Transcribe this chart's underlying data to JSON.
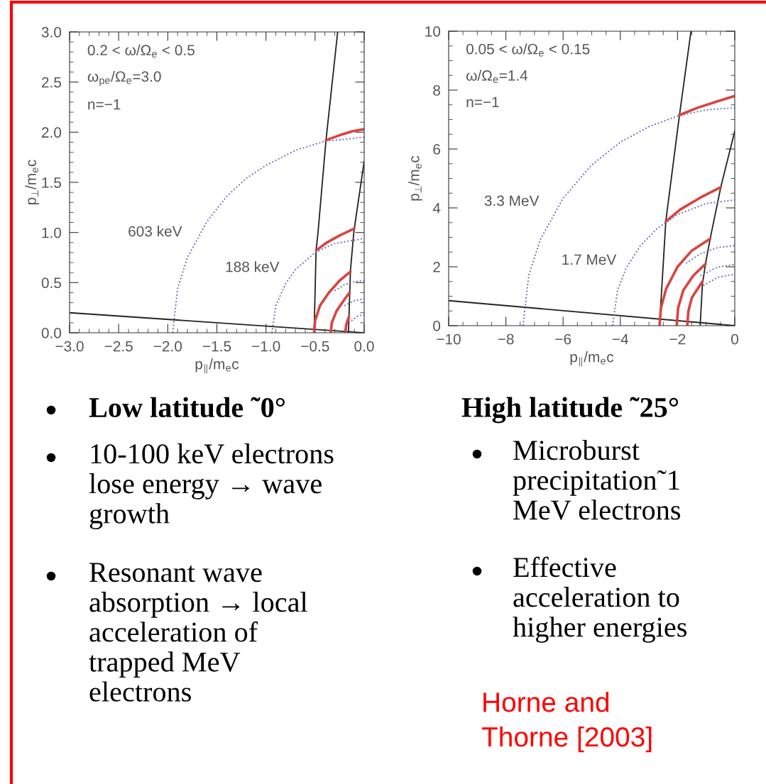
{
  "chart_data": [
    {
      "type": "line",
      "xlabel": "p$_{∥}$/m$_{e}$c",
      "ylabel": "p$_{⊥}$/m$_{e}$c",
      "line_style": "solid",
      "xlim": [
        -3,
        0
      ],
      "ylim": [
        0,
        3
      ],
      "xticks": [
        {
          "value": -3,
          "label": "−3.0"
        },
        {
          "value": -2.5,
          "label": "−2.5"
        },
        {
          "value": -2,
          "label": "−2.0"
        },
        {
          "value": -1.5,
          "label": "−1.5"
        },
        {
          "value": -1,
          "label": "−1.0"
        },
        {
          "value": -0.5,
          "label": "−0.5"
        },
        {
          "value": 0,
          "label": "0.0"
        }
      ],
      "yticks": [
        {
          "value": 0,
          "label": "0.0"
        },
        0.5,
        {
          "value": 1,
          "label": "1.0"
        },
        1.5,
        {
          "value": 2,
          "label": "2.0"
        },
        2.5,
        {
          "value": 3,
          "label": "3.0"
        }
      ],
      "annotations": [
        "0.2 < ω/Ω$_{e}$ < 0.5",
        "ω$_{pe}$/Ω$_{e}$=3.0",
        "n=−1",
        "603 keV",
        "188 keV"
      ],
      "series": [
        {
          "color": "#222222",
          "x": [
            -0.51,
            -0.49,
            -0.47,
            -0.39,
            -0.27
          ],
          "values": [
            0,
            0.82,
            1.0,
            1.91,
            3.0
          ]
        },
        {
          "color": "#222222",
          "x": [
            -0.16,
            -0.14,
            -0.105,
            0
          ],
          "values": [
            0,
            0.62,
            1.01,
            1.71
          ]
        },
        {
          "color": "#222222",
          "x": [
            -3,
            0
          ],
          "values": [
            0.2,
            0
          ]
        },
        {
          "color": "#5a5fb0",
          "line_style": "dotted",
          "x": [
            -1.95,
            -1.9,
            -1.8,
            -1.6,
            -1.4,
            -1.2,
            -1.0,
            -0.7,
            -0.4,
            0
          ],
          "values": [
            0,
            0.44,
            0.75,
            1.11,
            1.36,
            1.54,
            1.67,
            1.82,
            1.91,
            1.95
          ]
        },
        {
          "color": "#5a5fb0",
          "line_style": "dotted",
          "x": [
            -0.94,
            -0.9,
            -0.8,
            -0.7,
            -0.5,
            -0.3,
            0
          ],
          "values": [
            0,
            0.27,
            0.49,
            0.63,
            0.8,
            0.89,
            0.94
          ]
        },
        {
          "color": "#5a5fb0",
          "line_style": "dotted",
          "x": [
            -0.3,
            -0.2,
            -0.1,
            0
          ],
          "values": [
            0.42,
            0.48,
            0.51,
            0.52
          ]
        },
        {
          "color": "#5a5fb0",
          "line_style": "dotted",
          "x": [
            -0.2,
            -0.1,
            0
          ],
          "values": [
            0.27,
            0.32,
            0.34
          ]
        },
        {
          "color": "#5a5fb0",
          "line_style": "dotted",
          "x": [
            -0.13,
            -0.06,
            0
          ],
          "values": [
            0.12,
            0.17,
            0.18
          ]
        },
        {
          "color": "#d9443f",
          "x": [
            -0.39,
            -0.25,
            -0.12,
            0
          ],
          "values": [
            1.92,
            1.97,
            2.01,
            2.03
          ]
        },
        {
          "color": "#d9443f",
          "x": [
            -0.49,
            -0.38,
            -0.25,
            -0.1
          ],
          "values": [
            0.82,
            0.9,
            0.97,
            1.04
          ]
        },
        {
          "color": "#d9443f",
          "x": [
            -0.51,
            -0.5,
            -0.45,
            -0.36,
            -0.25,
            -0.14
          ],
          "values": [
            0,
            0.12,
            0.27,
            0.4,
            0.52,
            0.61
          ]
        },
        {
          "color": "#d9443f",
          "x": [
            -0.34,
            -0.33,
            -0.28,
            -0.21,
            -0.15
          ],
          "values": [
            0,
            0.1,
            0.22,
            0.32,
            0.4
          ]
        },
        {
          "color": "#d9443f",
          "x": [
            -0.19,
            -0.185,
            -0.17,
            -0.155
          ],
          "values": [
            0,
            0.07,
            0.12,
            0.16
          ]
        }
      ]
    },
    {
      "type": "line",
      "xlabel": "p$_{∥}$/m$_{e}$c",
      "ylabel": "p$_{⊥}$/m$_{e}$c",
      "line_style": "solid",
      "xlim": [
        -10,
        0
      ],
      "ylim": [
        0,
        10
      ],
      "xticks": [
        {
          "value": -10,
          "label": "−10"
        },
        {
          "value": -8,
          "label": "−8"
        },
        {
          "value": -6,
          "label": "−6"
        },
        {
          "value": -4,
          "label": "−4"
        },
        {
          "value": -2,
          "label": "−2"
        },
        0
      ],
      "yticks": [
        0,
        2,
        4,
        6,
        8,
        10
      ],
      "annotations": [
        "0.05 < ω/Ω$_{e}$ < 0.15",
        "ω/Ω$_{e}$=1.4",
        "n=−1",
        "3.3 MeV",
        "1.7 MeV"
      ],
      "series": [
        {
          "color": "#222222",
          "x": [
            -2.63,
            -2.41,
            -1.94,
            -1.53
          ],
          "values": [
            0,
            3.55,
            7.1,
            10
          ]
        },
        {
          "color": "#222222",
          "x": [
            -1.21,
            -1.13,
            -1.02,
            -0.86,
            -0.49,
            0
          ],
          "values": [
            0,
            1.41,
            2.12,
            2.95,
            4.7,
            6.61
          ]
        },
        {
          "color": "#222222",
          "x": [
            -10,
            0
          ],
          "values": [
            0.85,
            0
          ]
        },
        {
          "color": "#5a5fb0",
          "line_style": "dotted",
          "x": [
            -7.4,
            -7.2,
            -6.8,
            -6,
            -5,
            -4,
            -3,
            -2,
            -1,
            0
          ],
          "values": [
            0,
            1.71,
            2.92,
            4.33,
            5.46,
            6.23,
            6.76,
            7.12,
            7.33,
            7.4
          ]
        },
        {
          "color": "#5a5fb0",
          "line_style": "dotted",
          "x": [
            -4.27,
            -4.1,
            -3.8,
            -3.3,
            -2.7,
            -2,
            -1,
            0
          ],
          "values": [
            0,
            1.19,
            1.95,
            2.71,
            3.31,
            3.77,
            4.15,
            4.27
          ]
        },
        {
          "color": "#5a5fb0",
          "line_style": "dotted",
          "x": [
            -1.7,
            -1.2,
            -0.6,
            0
          ],
          "values": [
            2.12,
            2.44,
            2.65,
            2.72
          ]
        },
        {
          "color": "#5a5fb0",
          "line_style": "dotted",
          "x": [
            -1.2,
            -0.6,
            0
          ],
          "values": [
            1.7,
            1.99,
            2.08
          ]
        },
        {
          "color": "#5a5fb0",
          "line_style": "dotted",
          "x": [
            -1.1,
            -0.6,
            0
          ],
          "values": [
            1.36,
            1.64,
            1.75
          ]
        },
        {
          "color": "#d9443f",
          "x": [
            -1.94,
            -1.3,
            -0.6,
            0
          ],
          "values": [
            7.15,
            7.4,
            7.62,
            7.8
          ]
        },
        {
          "color": "#d9443f",
          "x": [
            -2.41,
            -1.9,
            -1.2,
            -0.49
          ],
          "values": [
            3.54,
            3.95,
            4.35,
            4.7
          ]
        },
        {
          "color": "#d9443f",
          "x": [
            -2.63,
            -2.58,
            -2.4,
            -2.0,
            -1.5,
            -0.86
          ],
          "values": [
            0,
            0.6,
            1.25,
            2.0,
            2.55,
            2.95
          ]
        },
        {
          "color": "#d9443f",
          "x": [
            -2.03,
            -1.98,
            -1.8,
            -1.45,
            -1.02
          ],
          "values": [
            0,
            0.6,
            1.2,
            1.7,
            2.1
          ]
        },
        {
          "color": "#d9443f",
          "x": [
            -1.66,
            -1.62,
            -1.5,
            -1.13
          ],
          "values": [
            0,
            0.5,
            0.95,
            1.5
          ]
        }
      ]
    },
    {
      "type": "other",
      "title": "Low latitude ˜0°",
      "annotations": [
        "10-100 keV electrons\nlose energy → wave\ngrowth",
        "Resonant wave\nabsorption → local\nacceleration of\ntrapped MeV\nelectrons"
      ]
    },
    {
      "type": "other",
      "title": "High latitude ˜25°",
      "annotations": [
        "Microburst\nprecipitation˜1\nMeV electrons",
        "Effective\nacceleration to\nhigher energies",
        "Horne and\nThorne [2003]"
      ]
    }
  ]
}
